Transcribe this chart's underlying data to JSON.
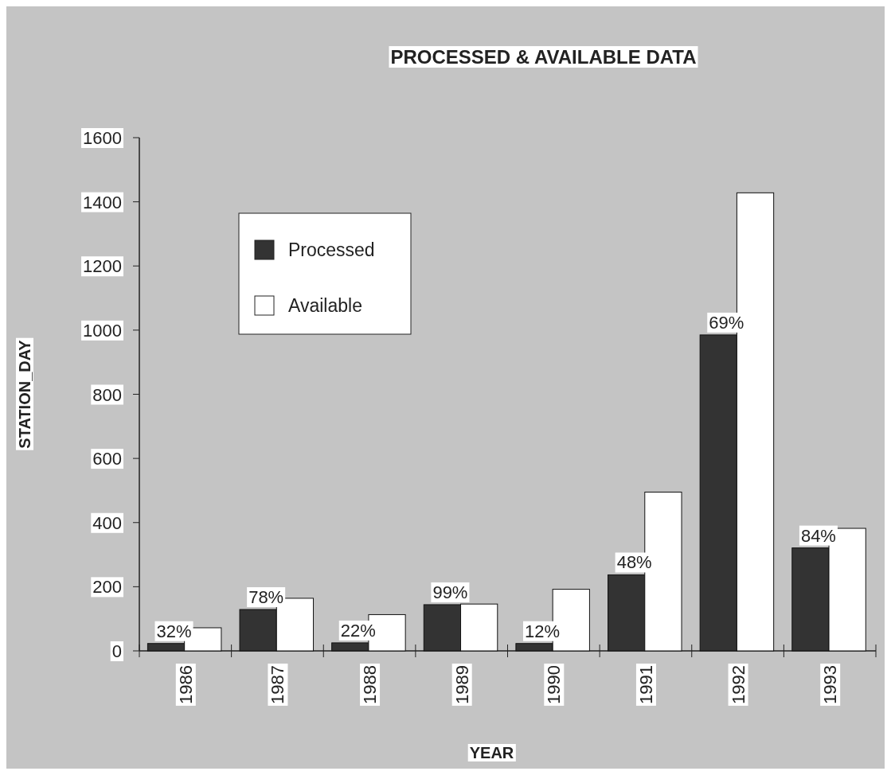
{
  "chart_data": {
    "type": "bar",
    "title": "PROCESSED & AVAILABLE DATA",
    "xlabel": "YEAR",
    "ylabel": "STATION_DAY",
    "categories": [
      "1986",
      "1987",
      "1988",
      "1989",
      "1990",
      "1991",
      "1992",
      "1993"
    ],
    "series": [
      {
        "name": "Processed",
        "color": "#333333",
        "values": [
          23,
          129,
          25,
          144,
          23,
          237,
          985,
          321
        ]
      },
      {
        "name": "Available",
        "color": "#ffffff",
        "values": [
          72,
          164,
          113,
          146,
          192,
          495,
          1428,
          382
        ]
      }
    ],
    "annotations": [
      {
        "text": "32%",
        "x": "1986",
        "y": 23
      },
      {
        "text": "78%",
        "x": "1987",
        "y": 129
      },
      {
        "text": "22%",
        "x": "1988",
        "y": 25
      },
      {
        "text": "99%",
        "x": "1989",
        "y": 144
      },
      {
        "text": "12%",
        "x": "1990",
        "y": 23
      },
      {
        "text": "48%",
        "x": "1991",
        "y": 237
      },
      {
        "text": "69%",
        "x": "1992",
        "y": 985
      },
      {
        "text": "84%",
        "x": "1993",
        "y": 321
      }
    ],
    "ylim": [
      0,
      1600
    ],
    "yticks": [
      0,
      200,
      400,
      600,
      800,
      1000,
      1200,
      1400,
      1600
    ],
    "grid": false,
    "legend": "top left"
  }
}
